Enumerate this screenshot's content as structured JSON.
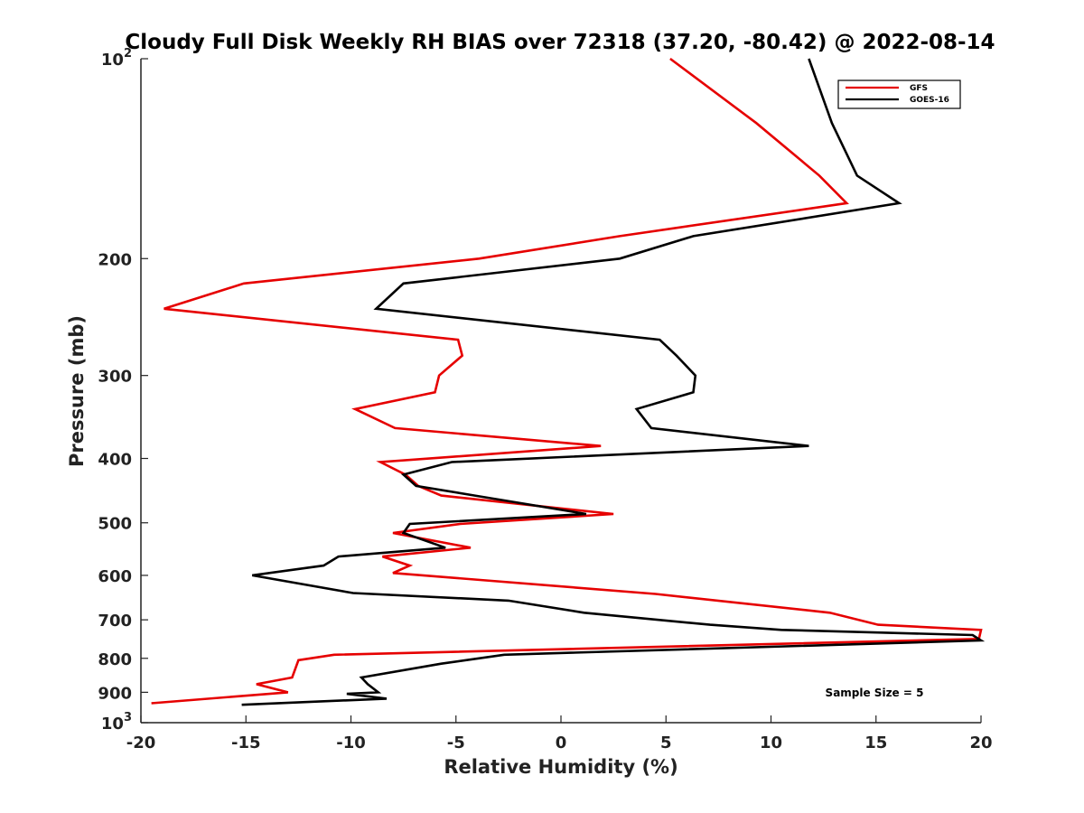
{
  "chart_data": {
    "type": "line",
    "title": "Cloudy Full Disk Weekly RH BIAS over 72318 (37.20, -80.42) @ 2022-08-14",
    "xlabel": "Relative Humidity (%)",
    "ylabel": "Pressure (mb)",
    "xlim": [
      -20,
      20
    ],
    "ylim": [
      100,
      1000
    ],
    "y_scale": "log",
    "y_reversed": true,
    "grid": false,
    "legend_position": "top-right",
    "x_ticks": [
      "-20",
      "-15",
      "-10",
      "-5",
      "0",
      "5",
      "10",
      "15",
      "20"
    ],
    "y_ticks": [
      {
        "value": 100,
        "base": "10",
        "exp": "2"
      },
      {
        "value": 200,
        "label": "200"
      },
      {
        "value": 300,
        "label": "300"
      },
      {
        "value": 400,
        "label": "400"
      },
      {
        "value": 500,
        "label": "500"
      },
      {
        "value": 600,
        "label": "600"
      },
      {
        "value": 700,
        "label": "700"
      },
      {
        "value": 800,
        "label": "800"
      },
      {
        "value": 900,
        "label": "900"
      },
      {
        "value": 1000,
        "base": "10",
        "exp": "3"
      }
    ],
    "annotation": "Sample Size = 5",
    "series": [
      {
        "name": "GFS",
        "color": "#e60000",
        "points": [
          [
            5.2,
            100
          ],
          [
            9.3,
            125
          ],
          [
            12.3,
            150
          ],
          [
            13.6,
            165
          ],
          [
            2.8,
            185
          ],
          [
            -3.9,
            200
          ],
          [
            -15.1,
            218
          ],
          [
            -18.9,
            238
          ],
          [
            -4.9,
            265
          ],
          [
            -4.7,
            280
          ],
          [
            -5.8,
            300
          ],
          [
            -6.0,
            318
          ],
          [
            -9.8,
            337
          ],
          [
            -7.9,
            360
          ],
          [
            1.9,
            383
          ],
          [
            -8.6,
            405
          ],
          [
            -7.4,
            423
          ],
          [
            -6.8,
            440
          ],
          [
            -5.7,
            455
          ],
          [
            2.5,
            485
          ],
          [
            -4.8,
            502
          ],
          [
            -8.0,
            518
          ],
          [
            -4.3,
            545
          ],
          [
            -8.5,
            562
          ],
          [
            -7.2,
            580
          ],
          [
            -8.0,
            595
          ],
          [
            4.5,
            640
          ],
          [
            12.8,
            683
          ],
          [
            15.1,
            712
          ],
          [
            20.0,
            725
          ],
          [
            19.9,
            748
          ],
          [
            -10.8,
            790
          ],
          [
            -12.5,
            805
          ],
          [
            -12.8,
            855
          ],
          [
            -14.5,
            875
          ],
          [
            -13.0,
            900
          ],
          [
            -19.5,
            935
          ]
        ]
      },
      {
        "name": "GOES-16",
        "color": "#000000",
        "points": [
          [
            11.8,
            100
          ],
          [
            12.9,
            125
          ],
          [
            14.1,
            150
          ],
          [
            16.1,
            165
          ],
          [
            6.3,
            185
          ],
          [
            2.8,
            200
          ],
          [
            -7.5,
            218
          ],
          [
            -8.8,
            238
          ],
          [
            4.7,
            265
          ],
          [
            5.5,
            280
          ],
          [
            6.4,
            300
          ],
          [
            6.3,
            318
          ],
          [
            3.6,
            337
          ],
          [
            4.3,
            360
          ],
          [
            11.8,
            383
          ],
          [
            -5.2,
            405
          ],
          [
            -7.5,
            423
          ],
          [
            -6.9,
            440
          ],
          [
            -4.1,
            455
          ],
          [
            1.2,
            485
          ],
          [
            -7.2,
            502
          ],
          [
            -7.5,
            518
          ],
          [
            -5.5,
            545
          ],
          [
            -10.6,
            562
          ],
          [
            -11.3,
            580
          ],
          [
            -14.7,
            600
          ],
          [
            -9.9,
            638
          ],
          [
            -2.5,
            655
          ],
          [
            1.1,
            683
          ],
          [
            7.1,
            712
          ],
          [
            10.5,
            725
          ],
          [
            19.6,
            738
          ],
          [
            20.0,
            752
          ],
          [
            -2.7,
            790
          ],
          [
            -5.7,
            815
          ],
          [
            -9.5,
            855
          ],
          [
            -9.2,
            875
          ],
          [
            -8.7,
            900
          ],
          [
            -10.2,
            905
          ],
          [
            -8.3,
            920
          ],
          [
            -15.2,
            940
          ]
        ]
      }
    ]
  }
}
